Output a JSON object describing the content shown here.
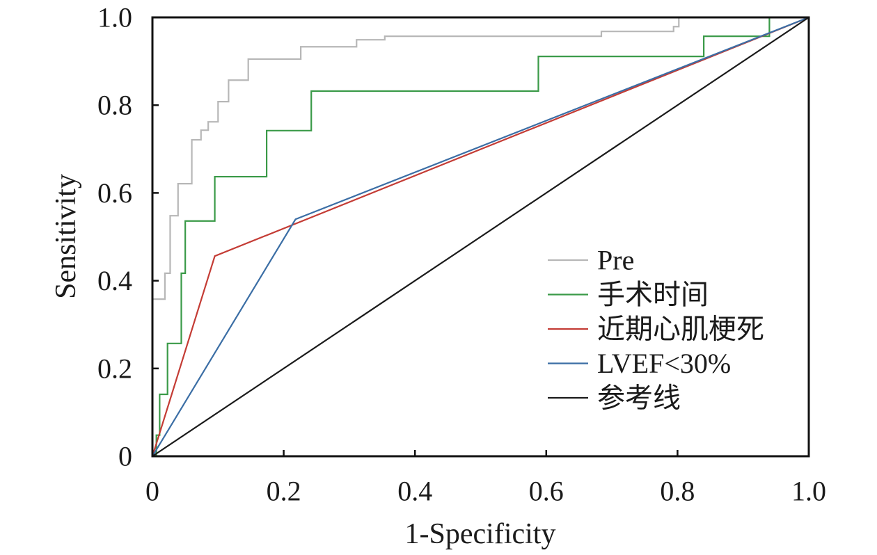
{
  "chart_data": {
    "type": "line",
    "xlabel": "1-Specificity",
    "ylabel": "Sensitivity",
    "xlim": [
      0,
      1
    ],
    "ylim": [
      0,
      1
    ],
    "x_ticks": [
      "0",
      "0.2",
      "0.4",
      "0.6",
      "0.8",
      "1.0"
    ],
    "y_ticks": [
      "0",
      "0.2",
      "0.4",
      "0.6",
      "0.8",
      "1.0"
    ],
    "grid": false,
    "legend_position": "lower-right",
    "series": [
      {
        "name": "Pre",
        "color": "#b7b7b7",
        "x": [
          0,
          0,
          0.019,
          0.019,
          0.027,
          0.027,
          0.039,
          0.039,
          0.06,
          0.06,
          0.074,
          0.074,
          0.085,
          0.085,
          0.1,
          0.1,
          0.116,
          0.116,
          0.146,
          0.146,
          0.226,
          0.226,
          0.311,
          0.311,
          0.354,
          0.354,
          0.684,
          0.684,
          0.794,
          0.794,
          0.802,
          0.802,
          1.0
        ],
        "y": [
          0,
          0.358,
          0.358,
          0.417,
          0.417,
          0.548,
          0.548,
          0.621,
          0.621,
          0.721,
          0.721,
          0.743,
          0.743,
          0.762,
          0.762,
          0.808,
          0.808,
          0.857,
          0.857,
          0.905,
          0.905,
          0.933,
          0.933,
          0.949,
          0.949,
          0.957,
          0.957,
          0.968,
          0.968,
          0.979,
          0.979,
          1.0,
          1.0
        ]
      },
      {
        "name": "手术时间",
        "color": "#3a9a48",
        "x": [
          0,
          0.006,
          0.006,
          0.011,
          0.011,
          0.023,
          0.023,
          0.044,
          0.044,
          0.05,
          0.05,
          0.095,
          0.095,
          0.174,
          0.174,
          0.242,
          0.242,
          0.588,
          0.588,
          0.84,
          0.84,
          0.94,
          0.94,
          1.0
        ],
        "y": [
          0,
          0,
          0.048,
          0.048,
          0.141,
          0.141,
          0.257,
          0.257,
          0.417,
          0.417,
          0.536,
          0.536,
          0.637,
          0.637,
          0.742,
          0.742,
          0.832,
          0.832,
          0.911,
          0.911,
          0.957,
          0.957,
          1.0,
          1.0
        ]
      },
      {
        "name": "近期心肌梗死",
        "color": "#c43c35",
        "x": [
          0,
          0.095,
          1.0
        ],
        "y": [
          0,
          0.456,
          1.0
        ]
      },
      {
        "name": "LVEF<30%",
        "color": "#3b6ea5",
        "x": [
          0,
          0.218,
          1.0
        ],
        "y": [
          0,
          0.54,
          1.0
        ]
      },
      {
        "name": "参考线",
        "color": "#1a1a1a",
        "x": [
          0,
          1.0
        ],
        "y": [
          0,
          1.0
        ]
      }
    ]
  }
}
